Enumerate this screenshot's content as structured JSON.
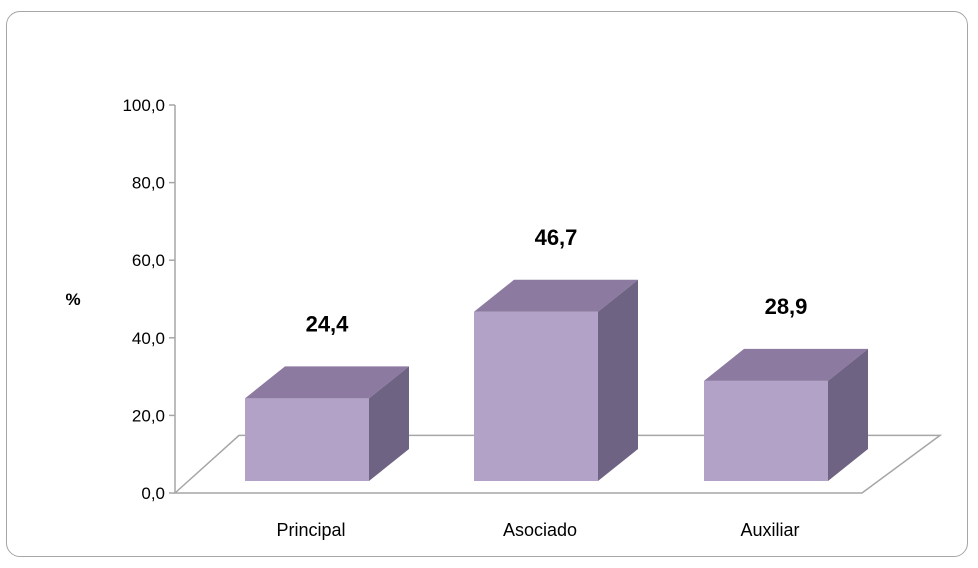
{
  "chart_data": {
    "type": "bar",
    "categories": [
      "Principal",
      "Asociado",
      "Auxiliar"
    ],
    "values": [
      24.4,
      46.7,
      28.9
    ],
    "data_labels": [
      "24,4",
      "46,7",
      "28,9"
    ],
    "title": "",
    "xlabel": "",
    "ylabel": "%",
    "ylim": [
      0,
      100
    ],
    "yticks": [
      0,
      20,
      40,
      60,
      80,
      100
    ],
    "ytick_labels": [
      "0,0",
      "20,0",
      "40,0",
      "60,0",
      "80,0",
      "100,0"
    ],
    "grid": false,
    "legend": "none",
    "style": "3d-column",
    "colors": {
      "front": "#b3a2c7",
      "top": "#8c7aa0",
      "side": "#6f6383",
      "axis": "#a6a6a6"
    }
  }
}
